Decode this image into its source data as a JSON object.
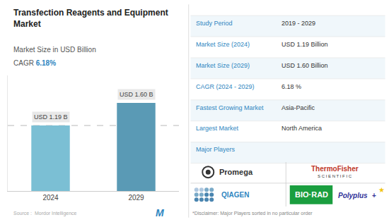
{
  "chart_data": {
    "type": "bar",
    "title": "Transfection Reagents and Equipment\nMarket",
    "subtitle": "Market Size in USD Billion",
    "cagr": {
      "label": "CAGR",
      "value": "6.18%",
      "color": "#2e86c1"
    },
    "categories": [
      "2024",
      "2029"
    ],
    "values": [
      1.19,
      1.6
    ],
    "value_labels": [
      "USD 1.19 B",
      "USD 1.60 B"
    ],
    "data_labels": true,
    "colors": [
      "#7bbfd4",
      "#5a9ab5"
    ],
    "ylim": [
      0,
      2.1
    ],
    "yticks": [],
    "tick_labels": "x",
    "grid": false,
    "reference_line": {
      "value": 1.19,
      "color": "#aaaaaa",
      "line_style": "dashed"
    },
    "source": "Source :  Mordor Intelligence",
    "source_logo": {
      "text": "M",
      "color": "#2e86c1"
    },
    "table": {
      "label_color": "#2e86c1",
      "value_color": "#333333",
      "rows": [
        {
          "label": "Study Period",
          "value": "2019 - 2029"
        },
        {
          "label": "Market Size (2024)",
          "value": "USD 1.19 Billion"
        },
        {
          "label": "Market Size (2029)",
          "value": "USD 1.60 Billion"
        },
        {
          "label": "CAGR (2024 - 2029)",
          "value": "6.18 %"
        },
        {
          "label": "Fastest Growing Market",
          "value": "Asia-Pacific"
        },
        {
          "label": "Largest Market",
          "value": "North America"
        },
        {
          "label": "Major Players"
        }
      ]
    },
    "logos": [
      {
        "text": "Promega",
        "color": "#333333"
      },
      {
        "text": "ThermoFisher",
        "color": "#c0392b",
        "subtext": {
          "text": "S C I E N T I F I C",
          "color": "#333333"
        }
      },
      {
        "text": "QIAGEN",
        "color": "#2e86c1",
        "colors": [
          "#b0c8e0",
          "#7aaac8",
          "#4a85b0"
        ]
      },
      {
        "text": "BIO·RAD",
        "color": "#1a9e3f",
        "text_color": "#ffffff"
      },
      {
        "text": "Polyplus",
        "color": "#333399",
        "marks": [
          {
            "text": "+",
            "color": "#333399"
          },
          {
            "text": "★",
            "color": "#f1c40f"
          }
        ]
      }
    ],
    "disclaimer": "*Disclaimer: Major Players sorted in no particular order"
  }
}
